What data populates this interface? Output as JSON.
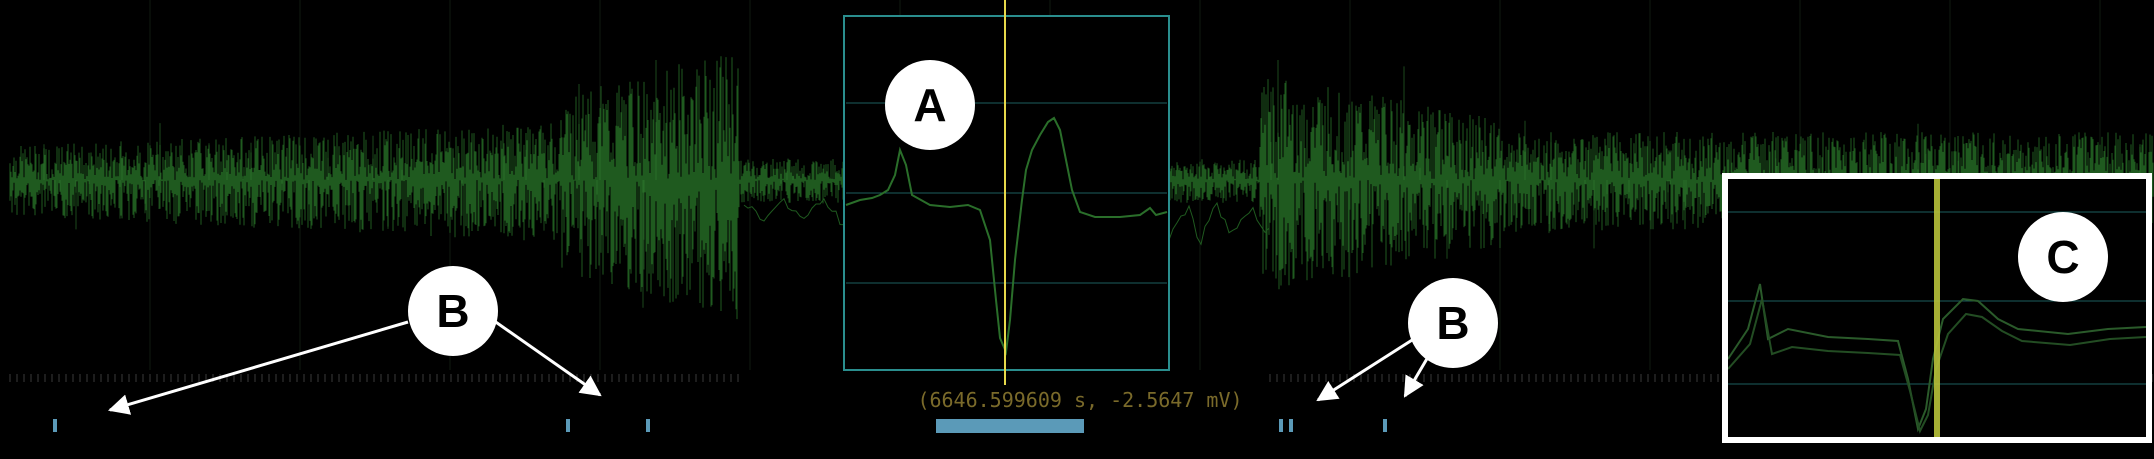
{
  "readout": {
    "text": "(6646.599609 s,  -2.5647 mV)"
  },
  "labels": {
    "a": "A",
    "b_left": "B",
    "b_right": "B",
    "c": "C"
  },
  "colors": {
    "background": "#000000",
    "trace": "#1f5a1f",
    "trace_bright": "#2f7a2f",
    "box_frame": "#2a8e8e",
    "cursor": "#e6d84a",
    "marker": "#5b9ab8",
    "readout": "#7a6a2a"
  }
}
